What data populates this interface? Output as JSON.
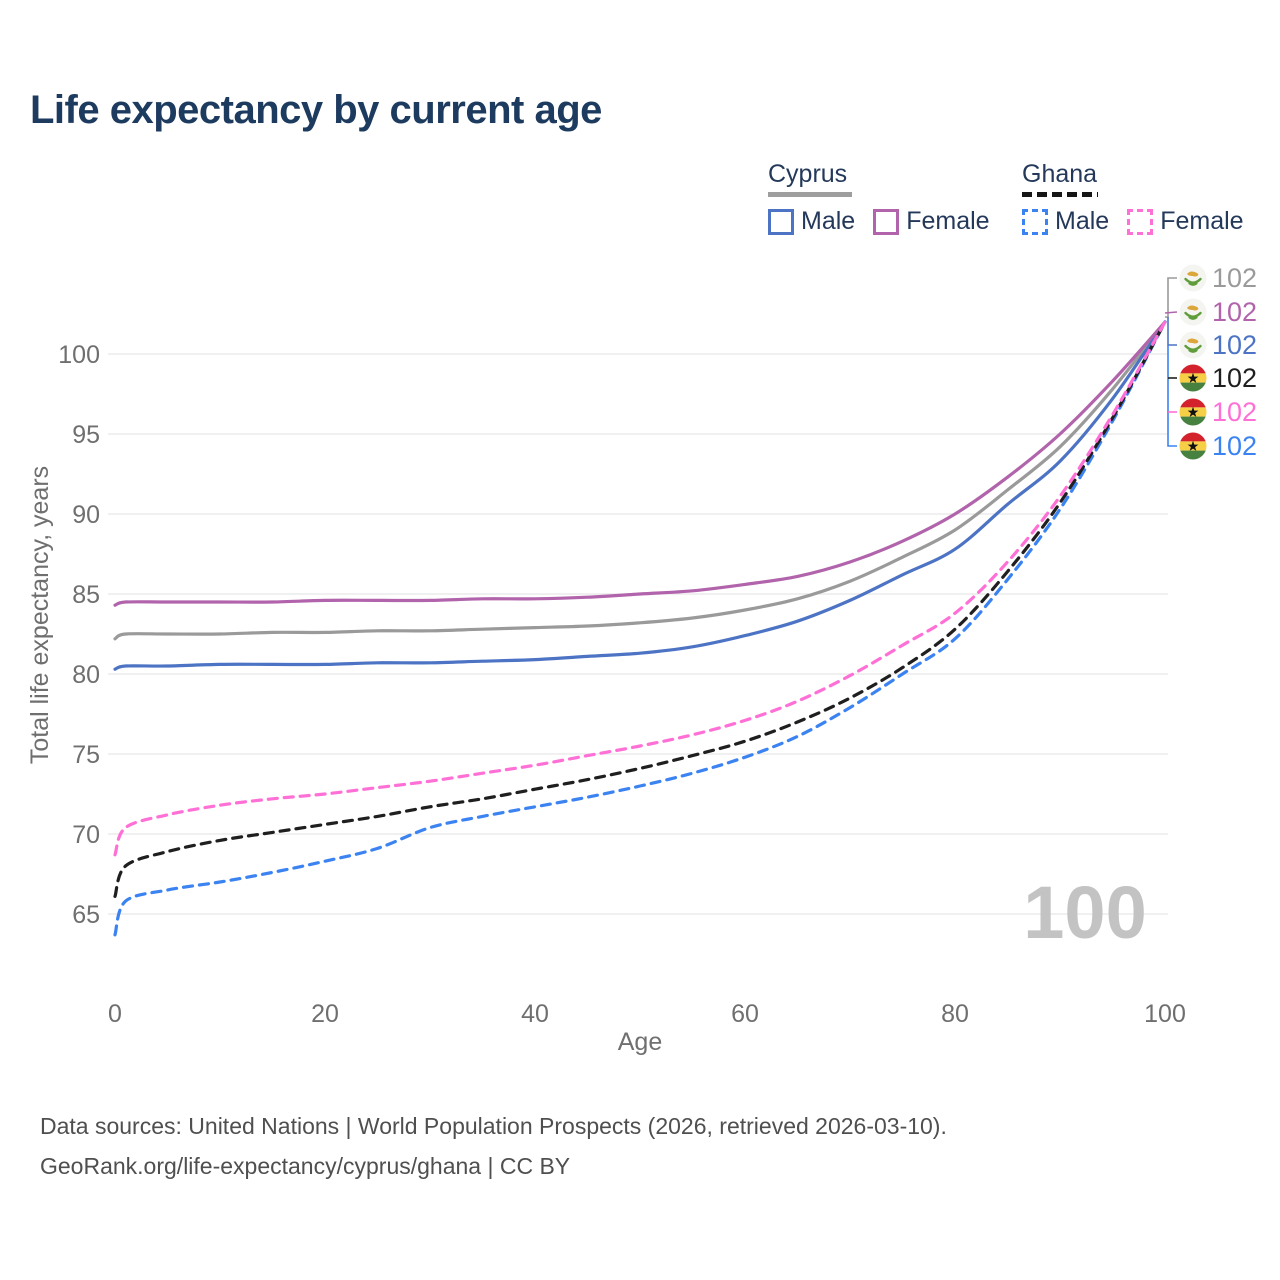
{
  "title": "Life expectancy by current age",
  "legend": {
    "groups": [
      {
        "name": "Cyprus",
        "line_style": "solid",
        "underline_color": "#9e9e9e",
        "items": [
          {
            "label": "Male",
            "color": "#4d74c4"
          },
          {
            "label": "Female",
            "color": "#b164ab"
          }
        ]
      },
      {
        "name": "Ghana",
        "line_style": "dashed",
        "underline_color": "#151515",
        "items": [
          {
            "label": "Male",
            "color": "#3c83f2"
          },
          {
            "label": "Female",
            "color": "#ff70d6"
          }
        ]
      }
    ]
  },
  "watermark": "100",
  "chart_data": {
    "type": "line",
    "title": "Life expectancy by current age",
    "xlabel": "Age",
    "ylabel": "Total life expectancy, years",
    "xlim": [
      0,
      100
    ],
    "ylim": [
      63,
      103
    ],
    "x_ticks": [
      0,
      20,
      40,
      60,
      80,
      100
    ],
    "y_ticks": [
      65,
      70,
      75,
      80,
      85,
      90,
      95,
      100
    ],
    "grid": "horizontal",
    "legend_position": "top-right",
    "x": [
      0,
      1,
      5,
      10,
      15,
      20,
      25,
      30,
      35,
      40,
      45,
      50,
      55,
      60,
      65,
      70,
      75,
      80,
      85,
      90,
      95,
      100
    ],
    "series": [
      {
        "name": "Cyprus Female",
        "country": "Cyprus",
        "sex": "Female",
        "color": "#b164ab",
        "dashed": false,
        "end_row": 1,
        "end_label": "102",
        "values": [
          84.3,
          84.5,
          84.5,
          84.5,
          84.5,
          84.6,
          84.6,
          84.6,
          84.7,
          84.7,
          84.8,
          85.0,
          85.2,
          85.6,
          86.1,
          87.0,
          88.3,
          90.0,
          92.3,
          95.0,
          98.3,
          102
        ]
      },
      {
        "name": "Cyprus Both sexes",
        "country": "Cyprus",
        "sex": "Both",
        "color": "#9a9a9a",
        "dashed": false,
        "end_row": 0,
        "end_label": "102",
        "values": [
          82.2,
          82.5,
          82.5,
          82.5,
          82.6,
          82.6,
          82.7,
          82.7,
          82.8,
          82.9,
          83.0,
          83.2,
          83.5,
          84.0,
          84.7,
          85.8,
          87.3,
          89.0,
          91.5,
          94.2,
          97.8,
          102
        ]
      },
      {
        "name": "Cyprus Male",
        "country": "Cyprus",
        "sex": "Male",
        "color": "#4d74c4",
        "dashed": false,
        "end_row": 2,
        "end_label": "102",
        "values": [
          80.3,
          80.5,
          80.5,
          80.6,
          80.6,
          80.6,
          80.7,
          80.7,
          80.8,
          80.9,
          81.1,
          81.3,
          81.7,
          82.4,
          83.3,
          84.6,
          86.2,
          87.8,
          90.6,
          93.3,
          97.2,
          102
        ]
      },
      {
        "name": "Ghana Female",
        "country": "Ghana",
        "sex": "Female",
        "color": "#ff70d6",
        "dashed": true,
        "end_row": 4,
        "end_label": "102",
        "values": [
          68.7,
          70.4,
          71.2,
          71.8,
          72.2,
          72.5,
          72.9,
          73.3,
          73.8,
          74.3,
          74.9,
          75.5,
          76.2,
          77.1,
          78.3,
          79.9,
          81.8,
          83.8,
          87.0,
          91.1,
          96.2,
          102
        ]
      },
      {
        "name": "Ghana Both sexes",
        "country": "Ghana",
        "sex": "Both",
        "color": "#1f1f1f",
        "dashed": true,
        "end_row": 3,
        "end_label": "102",
        "values": [
          66.1,
          68.0,
          68.9,
          69.6,
          70.1,
          70.6,
          71.1,
          71.7,
          72.2,
          72.8,
          73.4,
          74.1,
          74.9,
          75.8,
          77.0,
          78.5,
          80.4,
          82.8,
          86.4,
          90.7,
          96.0,
          102
        ]
      },
      {
        "name": "Ghana Male",
        "country": "Ghana",
        "sex": "Male",
        "color": "#3c83f2",
        "dashed": true,
        "end_row": 5,
        "end_label": "102",
        "values": [
          63.7,
          65.8,
          66.5,
          67.0,
          67.6,
          68.3,
          69.1,
          70.4,
          71.1,
          71.7,
          72.3,
          73.0,
          73.8,
          74.8,
          76.1,
          77.9,
          80.0,
          82.2,
          85.9,
          90.3,
          95.8,
          102
        ]
      }
    ],
    "flag_colors": {
      "cyprus_bg": "#f4f4f1",
      "cyprus_island": "#dba63a",
      "cyprus_branch": "#5f9c3a",
      "ghana_red": "#d4222d",
      "ghana_gold": "#f6cf46",
      "ghana_green": "#47813f",
      "ghana_star": "#111111"
    }
  },
  "footer": {
    "line1": "Data sources: United Nations | World Population Prospects (2026, retrieved 2026-03-10).",
    "line2": "GeoRank.org/life-expectancy/cyprus/ghana | CC BY"
  }
}
